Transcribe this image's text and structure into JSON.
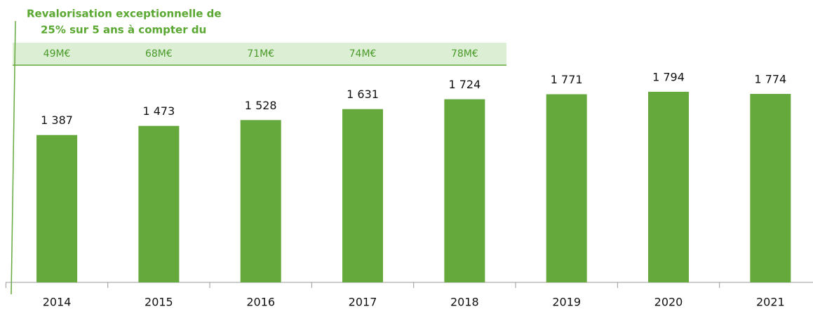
{
  "chart_data": {
    "type": "bar",
    "annotation": [
      "Revalorisation exceptionnelle de",
      "25% sur 5 ans à compter du"
    ],
    "band_labels": [
      "49M€",
      "68M€",
      "71M€",
      "74M€",
      "78M€"
    ],
    "categories": [
      "2014",
      "2015",
      "2016",
      "2017",
      "2018",
      "2019",
      "2020",
      "2021"
    ],
    "values": [
      1387,
      1473,
      1528,
      1631,
      1724,
      1771,
      1794,
      1774
    ],
    "value_labels": [
      "1 387",
      "1 473",
      "1 528",
      "1 631",
      "1 724",
      "1 771",
      "1 794",
      "1 774"
    ],
    "color": "#65a83c"
  }
}
